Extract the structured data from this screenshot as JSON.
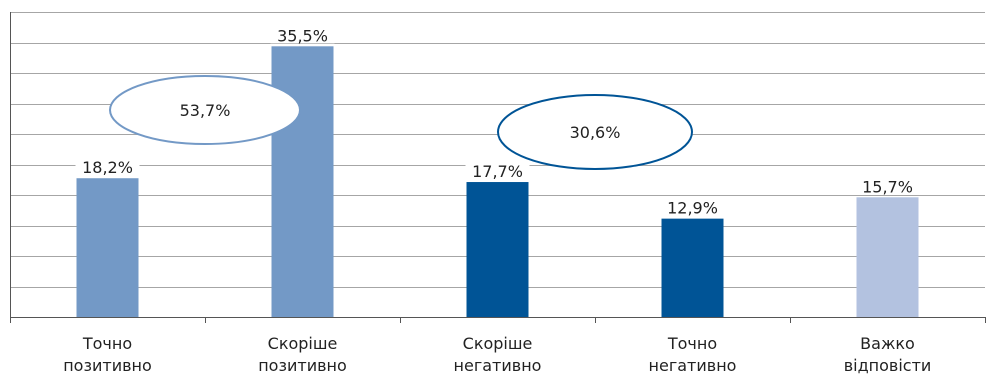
{
  "chart_data": {
    "type": "bar",
    "categories": [
      [
        "Точно",
        "позитивно"
      ],
      [
        "Скоріше",
        "позитивно"
      ],
      [
        "Скоріше",
        "негативно"
      ],
      [
        "Точно",
        "негативно"
      ],
      [
        "Важко",
        "відповісти"
      ]
    ],
    "values": [
      18.2,
      35.5,
      17.7,
      12.9,
      15.7
    ],
    "value_labels": [
      "18,2%",
      "35,5%",
      "17,7%",
      "12,9%",
      "15,7%"
    ],
    "bar_colors": [
      "#7399c6",
      "#7399c6",
      "#005496",
      "#005496",
      "#b3c2e0"
    ],
    "ylim": [
      0,
      40
    ],
    "grid": true,
    "annotations": [
      {
        "text": "53,7%",
        "spans_categories": [
          0,
          1
        ],
        "color": "#7399c6"
      },
      {
        "text": "30,6%",
        "spans_categories": [
          2,
          3
        ],
        "color": "#005496"
      }
    ]
  }
}
